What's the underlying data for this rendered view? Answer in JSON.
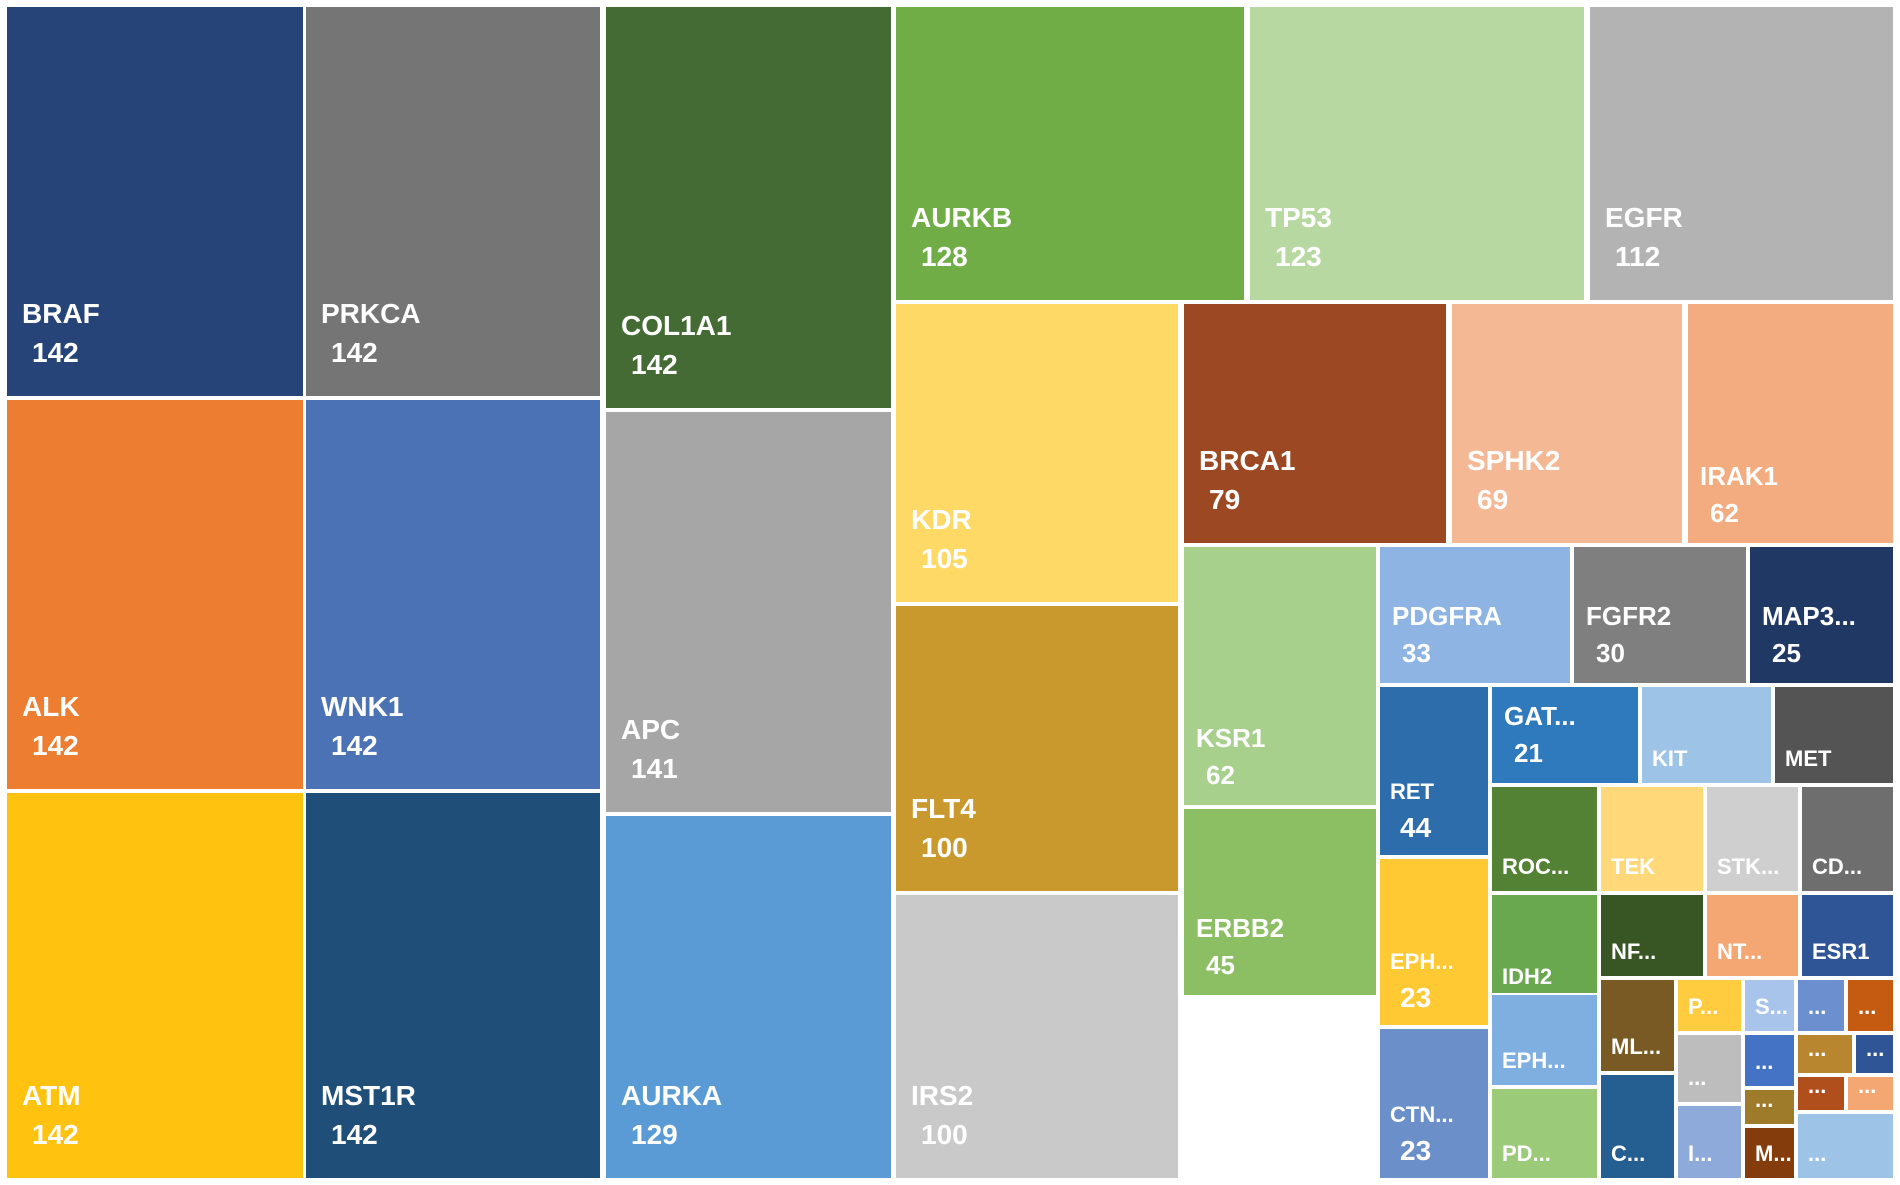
{
  "chart_data": {
    "type": "treemap",
    "title": "",
    "items": [
      {
        "label": "BRAF",
        "value": 142,
        "color": "#264478"
      },
      {
        "label": "PRKCA",
        "value": 142,
        "color": "#757575"
      },
      {
        "label": "COL1A1",
        "value": 142,
        "color": "#446B34"
      },
      {
        "label": "AURKB",
        "value": 128,
        "color": "#70AD47"
      },
      {
        "label": "TP53",
        "value": 123,
        "color": "#B8D8A1"
      },
      {
        "label": "EGFR",
        "value": 112,
        "color": "#B3B3B3"
      },
      {
        "label": "ALK",
        "value": 142,
        "color": "#ED7D31"
      },
      {
        "label": "WNK1",
        "value": 142,
        "color": "#4A72B5"
      },
      {
        "label": "APC",
        "value": 141,
        "color": "#A6A6A6"
      },
      {
        "label": "KDR",
        "value": 105,
        "color": "#FFD966"
      },
      {
        "label": "BRCA1",
        "value": 79,
        "color": "#9C4822"
      },
      {
        "label": "SPHK2",
        "value": 69,
        "color": "#F4B994"
      },
      {
        "label": "IRAK1",
        "value": 62,
        "color": "#F2AC7F"
      },
      {
        "label": "KSR1",
        "value": 62,
        "color": "#A8D08D"
      },
      {
        "label": "PDGFRA",
        "value": 33,
        "color": "#8DB4E2"
      },
      {
        "label": "FGFR2",
        "value": 30,
        "color": "#7F7F7F"
      },
      {
        "label": "MAP3...",
        "value": 25,
        "color": "#1F3864"
      },
      {
        "label": "ATM",
        "value": 142,
        "color": "#FFC20E"
      },
      {
        "label": "MST1R",
        "value": 142,
        "color": "#1F4E79"
      },
      {
        "label": "AURKA",
        "value": 129,
        "color": "#5B9BD5"
      },
      {
        "label": "FLT4",
        "value": 100,
        "color": "#C9992D"
      },
      {
        "label": "IRS2",
        "value": 100,
        "color": "#C9C9C9"
      },
      {
        "label": "ERBB2",
        "value": 45,
        "color": "#8CBF63"
      },
      {
        "label": "RET",
        "value": 44,
        "color": "#2E6DAB"
      },
      {
        "label": "EPH...",
        "value": 23,
        "color": "#FFC934"
      },
      {
        "label": "CTN...",
        "value": 23,
        "color": "#6B8FC9"
      },
      {
        "label": "GAT...",
        "value": 21,
        "color": "#2F79BD"
      },
      {
        "label": "KIT",
        "value": null,
        "color": "#9DC3E6"
      },
      {
        "label": "MET",
        "value": null,
        "color": "#545454"
      },
      {
        "label": "ROC...",
        "value": null,
        "color": "#548235"
      },
      {
        "label": "TEK",
        "value": null,
        "color": "#FFD87A"
      },
      {
        "label": "STK...",
        "value": null,
        "color": "#CFCFCF"
      },
      {
        "label": "CD...",
        "value": null,
        "color": "#6E6E6E"
      },
      {
        "label": "NF...",
        "value": null,
        "color": "#375623"
      },
      {
        "label": "NT...",
        "value": null,
        "color": "#F4A673"
      },
      {
        "label": "ESR1",
        "value": null,
        "color": "#2F5597"
      },
      {
        "label": "IDH2",
        "value": null,
        "color": "#6AA84F"
      },
      {
        "label": "EPH...",
        "value": null,
        "color": "#7FAFE0"
      },
      {
        "label": "PD...",
        "value": null,
        "color": "#9BCB78"
      },
      {
        "label": "ML...",
        "value": null,
        "color": "#7A5A24"
      },
      {
        "label": "C...",
        "value": null,
        "color": "#255E91"
      },
      {
        "label": "P...",
        "value": null,
        "color": "#FFCC40"
      },
      {
        "label": "...",
        "value": null,
        "color": "#BDBDBD"
      },
      {
        "label": "I...",
        "value": null,
        "color": "#8EAADB"
      },
      {
        "label": "S...",
        "value": null,
        "color": "#A9C4EB"
      },
      {
        "label": "...",
        "value": null,
        "color": "#4472C4"
      },
      {
        "label": "...",
        "value": null,
        "color": "#9E7A2B"
      },
      {
        "label": "M...",
        "value": null,
        "color": "#843C0C"
      },
      {
        "label": "...",
        "value": null,
        "color": "#6C8FD0"
      },
      {
        "label": "...",
        "value": null,
        "color": "#C55A11"
      },
      {
        "label": "...",
        "value": null,
        "color": "#B8862F"
      },
      {
        "label": "...",
        "value": null,
        "color": "#2F5597"
      },
      {
        "label": "...",
        "value": null,
        "color": "#B04F1C"
      },
      {
        "label": "...",
        "value": null,
        "color": "#F4A673"
      },
      {
        "label": "...",
        "value": null,
        "color": "#9DC3E6"
      },
      {
        "label": "...",
        "value": null,
        "color": "#ED7D31"
      }
    ]
  }
}
